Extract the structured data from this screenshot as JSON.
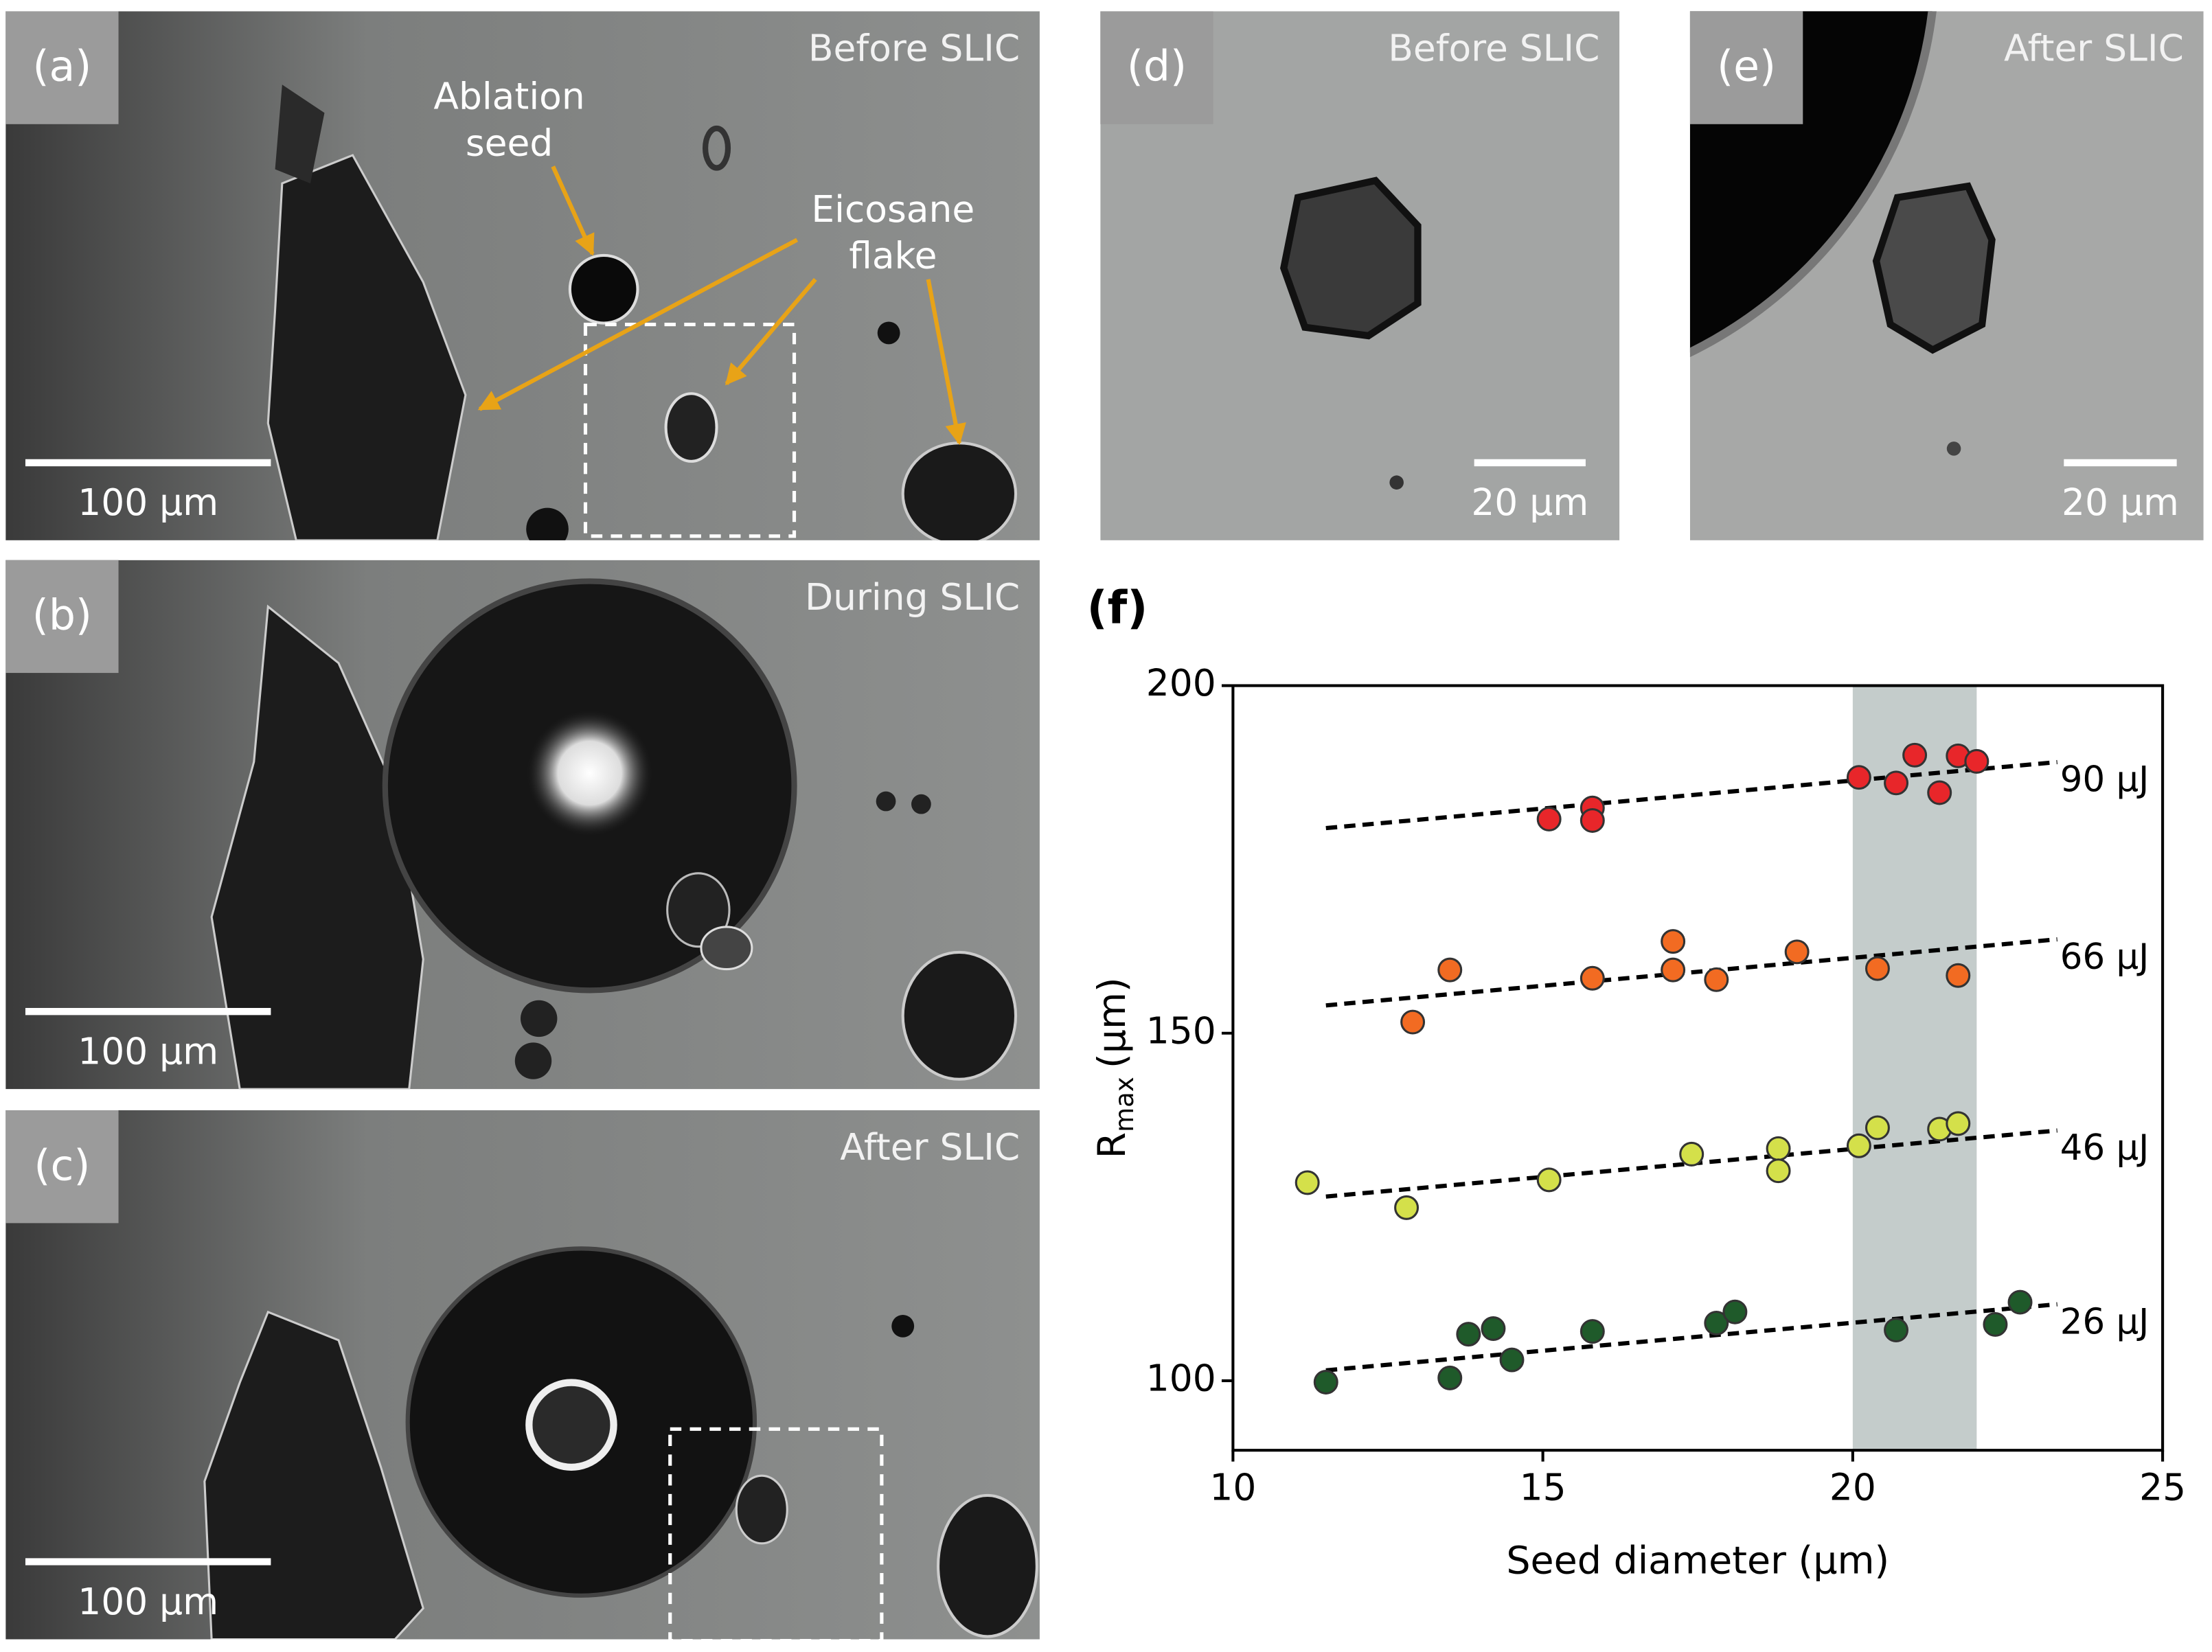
{
  "panels": [
    {
      "label": "(a)",
      "caption": "Before SLIC",
      "scale": "100 μm",
      "annotations": [
        {
          "lines": [
            "Ablation",
            "seed"
          ]
        },
        {
          "lines": [
            "Eicosane",
            "flake"
          ]
        }
      ]
    },
    {
      "label": "(b)",
      "caption": "During SLIC",
      "scale": "100 μm"
    },
    {
      "label": "(c)",
      "caption": "After SLIC",
      "scale": "100 μm"
    },
    {
      "label": "(d)",
      "caption": "Before SLIC",
      "scale": "20 μm"
    },
    {
      "label": "(e)",
      "caption": "After SLIC",
      "scale": "20 μm"
    }
  ],
  "chart_data": {
    "type": "scatter",
    "label": "(f)",
    "xlabel": "Seed diameter (μm)",
    "ylabel": "R",
    "ylabel_sub": "max",
    "ylabel_unit": "(μm)",
    "xlim": [
      10,
      25
    ],
    "ylim": [
      90,
      200
    ],
    "xticks": [
      10,
      15,
      20,
      25
    ],
    "yticks": [
      100,
      150,
      200
    ],
    "highlight_x": [
      20,
      22
    ],
    "highlight_color": "#c4cccb",
    "series": [
      {
        "name": "90 μJ",
        "color": "#e8262a",
        "x": [
          15.1,
          15.8,
          15.8,
          20.1,
          20.7,
          21.0,
          21.4,
          21.7,
          22.0
        ],
        "values": [
          180.8,
          182.4,
          180.6,
          186.8,
          186.0,
          190.0,
          184.6,
          189.9,
          189.1
        ],
        "fit": {
          "x": [
            11.5,
            23.3
          ],
          "y": [
            179.5,
            189
          ]
        }
      },
      {
        "name": "66 μJ",
        "color": "#f26b22",
        "x": [
          12.9,
          13.5,
          15.8,
          17.1,
          17.1,
          17.8,
          19.1,
          20.4,
          21.7
        ],
        "values": [
          151.6,
          159.1,
          157.9,
          163.2,
          159.1,
          157.7,
          161.7,
          159.3,
          158.3
        ],
        "fit": {
          "x": [
            11.5,
            23.3
          ],
          "y": [
            154,
            163.5
          ]
        }
      },
      {
        "name": "46 μJ",
        "color": "#d4e04a",
        "x": [
          11.2,
          12.8,
          15.1,
          17.4,
          18.8,
          18.8,
          20.1,
          20.4,
          21.4,
          21.7
        ],
        "values": [
          128.5,
          124.9,
          128.9,
          132.6,
          133.4,
          130.2,
          133.8,
          136.4,
          136.2,
          137.0
        ],
        "fit": {
          "x": [
            11.5,
            23.3
          ],
          "y": [
            126.5,
            136
          ]
        }
      },
      {
        "name": "26 μJ",
        "color": "#1f5a2a",
        "x": [
          11.5,
          13.5,
          13.8,
          14.2,
          14.5,
          15.8,
          17.8,
          18.1,
          20.7,
          22.3,
          22.7
        ],
        "values": [
          99.8,
          100.4,
          106.7,
          107.5,
          103.0,
          107.1,
          108.3,
          109.9,
          107.3,
          108.1,
          111.3
        ],
        "fit": {
          "x": [
            11.5,
            23.3
          ],
          "y": [
            101.5,
            111
          ]
        }
      }
    ]
  }
}
